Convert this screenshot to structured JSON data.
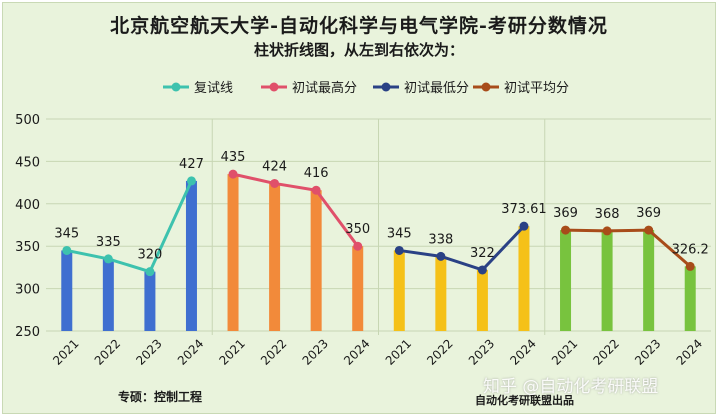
{
  "title": "北京航空航天大学-自动化科学与电气学院-考研分数情况",
  "subtitle": "柱状折线图，从左到右依次为：",
  "footer_left": "专硕：控制工程",
  "footer_right": "自动化考研联盟出品",
  "watermark": "知乎 @自动化考研联盟",
  "chart_data": {
    "type": "bar",
    "title": "北京航空航天大学-自动化科学与电气学院-考研分数情况",
    "ylim": [
      250,
      500
    ],
    "yticks": [
      250,
      300,
      350,
      400,
      450,
      500
    ],
    "grid": true,
    "legend_position": "top",
    "legend": [
      "复试线",
      "初试最高分",
      "初试最低分",
      "初试平均分"
    ],
    "groups": [
      {
        "name": "复试线",
        "categories": [
          "2021",
          "2022",
          "2023",
          "2024"
        ],
        "values": [
          345,
          335,
          320,
          427
        ],
        "labels": [
          "345",
          "335",
          "320",
          "427"
        ],
        "bar_color": "#3f6fd0",
        "line_color": "#3dc2ae"
      },
      {
        "name": "初试最高分",
        "categories": [
          "2021",
          "2022",
          "2023",
          "2024"
        ],
        "values": [
          435,
          424,
          416,
          350
        ],
        "labels": [
          "435",
          "424",
          "416",
          "350"
        ],
        "bar_color": "#f28a3a",
        "line_color": "#e0506a"
      },
      {
        "name": "初试最低分",
        "categories": [
          "2021",
          "2022",
          "2023",
          "2024"
        ],
        "values": [
          345,
          338,
          322,
          373.61
        ],
        "labels": [
          "345",
          "338",
          "322",
          "373.61"
        ],
        "bar_color": "#f5c118",
        "line_color": "#2a4185"
      },
      {
        "name": "初试平均分",
        "categories": [
          "2021",
          "2022",
          "2023",
          "2024"
        ],
        "values": [
          369,
          368,
          369,
          326.2
        ],
        "labels": [
          "369",
          "368",
          "369",
          "326.2"
        ],
        "bar_color": "#78c33e",
        "line_color": "#a84c1a"
      }
    ]
  }
}
